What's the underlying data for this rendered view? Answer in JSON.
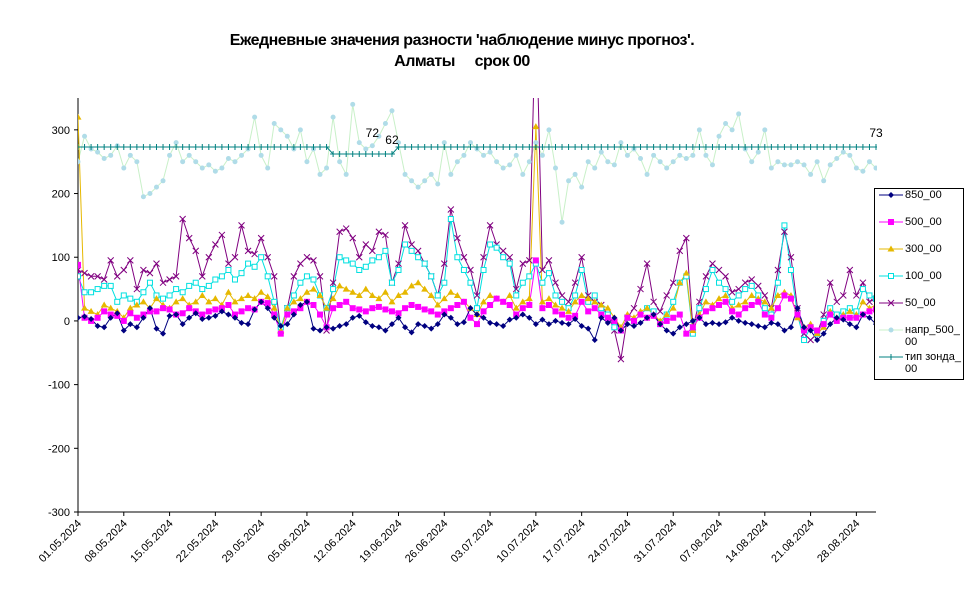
{
  "chart_data": {
    "type": "line",
    "title": "Ежедневные значения разности 'наблюдение минус прогноз'.",
    "subtitle": "Алматы     срок 00",
    "categories": [
      "01.05.2024",
      null,
      null,
      null,
      null,
      null,
      null,
      "08.05.2024",
      null,
      null,
      null,
      null,
      null,
      null,
      "15.05.2024",
      null,
      null,
      null,
      null,
      null,
      null,
      "22.05.2024",
      null,
      null,
      null,
      null,
      null,
      null,
      "29.05.2024",
      null,
      null,
      null,
      null,
      null,
      null,
      "05.06.2024",
      null,
      null,
      null,
      null,
      null,
      null,
      "12.06.2024",
      null,
      null,
      null,
      null,
      null,
      null,
      "19.06.2024",
      null,
      null,
      null,
      null,
      null,
      null,
      "26.06.2024",
      null,
      null,
      null,
      null,
      null,
      null,
      "03.07.2024",
      null,
      null,
      null,
      null,
      null,
      null,
      "10.07.2024",
      null,
      null,
      null,
      null,
      null,
      null,
      "17.07.2024",
      null,
      null,
      null,
      null,
      null,
      null,
      "24.07.2024",
      null,
      null,
      null,
      null,
      null,
      null,
      "31.07.2024",
      null,
      null,
      null,
      null,
      null,
      null,
      "07.08.2024",
      null,
      null,
      null,
      null,
      null,
      null,
      "14.08.2024",
      null,
      null,
      null,
      null,
      null,
      null,
      "21.08.2024",
      null,
      null,
      null,
      null,
      null,
      null,
      "28.08.2024",
      null,
      null,
      null
    ],
    "ylim": [
      -300,
      350
    ],
    "yticks": [
      -300,
      -200,
      -100,
      0,
      100,
      200,
      300
    ],
    "series": [
      {
        "name": "850_00",
        "color": "#000080",
        "marker": "diamond",
        "values": [
          5,
          7,
          3,
          -8,
          -10,
          5,
          12,
          -15,
          -5,
          -10,
          5,
          20,
          -12,
          -20,
          8,
          10,
          -5,
          5,
          12,
          3,
          5,
          8,
          15,
          10,
          5,
          -3,
          -5,
          18,
          30,
          20,
          5,
          -8,
          -5,
          10,
          25,
          30,
          -12,
          -15,
          -10,
          -12,
          -8,
          -5,
          5,
          8,
          -2,
          -8,
          -10,
          -15,
          -5,
          5,
          -10,
          -18,
          -5,
          -8,
          -12,
          -5,
          10,
          5,
          -5,
          -2,
          20,
          10,
          5,
          -3,
          -5,
          -8,
          2,
          5,
          10,
          5,
          -5,
          2,
          -5,
          0,
          -3,
          -5,
          3,
          -8,
          -12,
          -30,
          5,
          -3,
          5,
          -15,
          -5,
          -8,
          -3,
          5,
          10,
          -5,
          -15,
          -20,
          -10,
          -5,
          0,
          5,
          -5,
          -3,
          -5,
          -2,
          5,
          0,
          -3,
          -5,
          -8,
          -10,
          -3,
          -5,
          -15,
          -10,
          20,
          -10,
          -15,
          -30,
          -20,
          -5,
          5,
          2,
          -5,
          -10,
          10,
          5,
          -5
        ]
      },
      {
        "name": "500_00",
        "color": "#ff00ff",
        "marker": "square",
        "values": [
          88,
          5,
          0,
          5,
          15,
          10,
          8,
          0,
          12,
          5,
          10,
          15,
          15,
          20,
          18,
          10,
          12,
          20,
          15,
          10,
          15,
          18,
          20,
          25,
          10,
          15,
          20,
          18,
          30,
          28,
          10,
          -20,
          10,
          15,
          20,
          30,
          25,
          10,
          -10,
          20,
          25,
          30,
          20,
          18,
          15,
          20,
          22,
          18,
          15,
          12,
          20,
          25,
          22,
          18,
          15,
          10,
          15,
          20,
          25,
          30,
          5,
          -5,
          15,
          25,
          35,
          30,
          25,
          10,
          20,
          25,
          95,
          20,
          25,
          15,
          10,
          5,
          8,
          30,
          15,
          20,
          10,
          5,
          0,
          -15,
          5,
          0,
          10,
          5,
          8,
          -5,
          0,
          5,
          10,
          -20,
          -10,
          5,
          15,
          20,
          25,
          30,
          15,
          10,
          20,
          25,
          30,
          10,
          5,
          20,
          40,
          35,
          10,
          -15,
          -10,
          -15,
          -5,
          10,
          0,
          5,
          5,
          5,
          10,
          15,
          18
        ]
      },
      {
        "name": "300_00",
        "color": "#e6b800",
        "marker": "triangle",
        "values": [
          320,
          20,
          15,
          10,
          25,
          20,
          15,
          5,
          20,
          25,
          30,
          20,
          35,
          25,
          20,
          30,
          35,
          25,
          30,
          40,
          30,
          35,
          25,
          45,
          30,
          35,
          40,
          35,
          45,
          38,
          20,
          -15,
          20,
          30,
          35,
          45,
          50,
          40,
          20,
          35,
          55,
          50,
          45,
          40,
          50,
          40,
          35,
          45,
          30,
          40,
          45,
          55,
          60,
          50,
          40,
          25,
          35,
          45,
          40,
          30,
          20,
          10,
          30,
          40,
          35,
          30,
          40,
          20,
          30,
          35,
          305,
          30,
          35,
          25,
          20,
          15,
          30,
          40,
          35,
          30,
          25,
          20,
          5,
          -10,
          10,
          5,
          15,
          20,
          10,
          0,
          10,
          20,
          60,
          75,
          -15,
          10,
          30,
          25,
          35,
          40,
          20,
          25,
          30,
          40,
          35,
          30,
          20,
          40,
          45,
          40,
          5,
          -10,
          -5,
          -20,
          -10,
          15,
          5,
          10,
          15,
          10,
          30,
          20,
          25
        ]
      },
      {
        "name": "100_00",
        "color": "#00e0e0",
        "marker": "square-open",
        "values": [
          70,
          45,
          45,
          50,
          55,
          55,
          30,
          40,
          35,
          30,
          45,
          60,
          40,
          35,
          40,
          50,
          45,
          55,
          60,
          50,
          55,
          65,
          70,
          80,
          65,
          75,
          90,
          85,
          100,
          70,
          30,
          -10,
          20,
          40,
          60,
          70,
          65,
          40,
          20,
          50,
          100,
          95,
          90,
          80,
          85,
          95,
          100,
          110,
          60,
          80,
          120,
          110,
          100,
          90,
          70,
          40,
          60,
          160,
          100,
          80,
          60,
          20,
          80,
          120,
          115,
          100,
          90,
          40,
          60,
          70,
          90,
          60,
          75,
          40,
          30,
          20,
          40,
          80,
          30,
          40,
          20,
          10,
          -10,
          -15,
          5,
          0,
          10,
          20,
          15,
          -5,
          10,
          30,
          60,
          70,
          -20,
          20,
          50,
          80,
          60,
          50,
          30,
          40,
          50,
          55,
          40,
          20,
          10,
          60,
          150,
          80,
          10,
          -30,
          -10,
          -20,
          0,
          20,
          10,
          15,
          20,
          15,
          50,
          40,
          35
        ]
      },
      {
        "name": "50_00",
        "color": "#800080",
        "marker": "x",
        "values": [
          80,
          75,
          70,
          70,
          65,
          95,
          70,
          80,
          95,
          50,
          80,
          75,
          90,
          60,
          65,
          70,
          160,
          130,
          110,
          70,
          100,
          120,
          135,
          90,
          100,
          150,
          110,
          105,
          130,
          100,
          70,
          -15,
          20,
          70,
          90,
          100,
          95,
          70,
          -15,
          60,
          140,
          145,
          130,
          100,
          120,
          110,
          140,
          135,
          60,
          90,
          150,
          120,
          110,
          90,
          70,
          40,
          90,
          175,
          130,
          100,
          80,
          40,
          100,
          150,
          120,
          110,
          100,
          50,
          90,
          95,
          500,
          80,
          95,
          60,
          40,
          30,
          60,
          100,
          40,
          30,
          25,
          10,
          -15,
          -60,
          5,
          20,
          50,
          90,
          30,
          15,
          40,
          60,
          110,
          130,
          -10,
          30,
          70,
          90,
          80,
          70,
          45,
          50,
          60,
          65,
          55,
          40,
          20,
          80,
          140,
          100,
          20,
          -20,
          -30,
          -20,
          10,
          60,
          30,
          40,
          80,
          40,
          60,
          30,
          35
        ]
      },
      {
        "name": "напр_500_00",
        "color": "#b0dce8",
        "line_color": "#c8f0c8",
        "marker": "circle",
        "values": [
          250,
          290,
          270,
          265,
          255,
          260,
          275,
          240,
          260,
          250,
          195,
          200,
          210,
          220,
          260,
          280,
          250,
          260,
          250,
          240,
          245,
          235,
          240,
          255,
          250,
          260,
          270,
          320,
          260,
          240,
          310,
          300,
          290,
          270,
          300,
          250,
          270,
          230,
          240,
          320,
          250,
          230,
          340,
          280,
          270,
          275,
          290,
          310,
          330,
          280,
          230,
          220,
          210,
          220,
          230,
          215,
          280,
          230,
          250,
          260,
          280,
          270,
          260,
          265,
          250,
          240,
          245,
          260,
          230,
          250,
          280,
          260,
          300,
          240,
          155,
          220,
          230,
          210,
          250,
          240,
          265,
          250,
          245,
          280,
          260,
          270,
          255,
          230,
          260,
          250,
          240,
          250,
          260,
          255,
          260,
          300,
          260,
          245,
          290,
          310,
          300,
          325,
          270,
          250,
          265,
          300,
          240,
          250,
          245,
          245,
          250,
          245,
          230,
          250,
          220,
          245,
          255,
          265,
          260,
          240,
          235,
          250,
          240
        ]
      },
      {
        "name": "тип зонда_00",
        "color": "#008080",
        "marker": "plus",
        "values": [
          273,
          273,
          273,
          273,
          273,
          273,
          273,
          273,
          273,
          273,
          273,
          273,
          273,
          273,
          273,
          273,
          273,
          273,
          273,
          273,
          273,
          273,
          273,
          273,
          273,
          273,
          273,
          273,
          273,
          273,
          273,
          273,
          273,
          273,
          273,
          273,
          273,
          273,
          273,
          262,
          262,
          262,
          262,
          262,
          262,
          262,
          262,
          262,
          262,
          273,
          273,
          273,
          273,
          273,
          273,
          273,
          273,
          273,
          273,
          273,
          273,
          273,
          273,
          273,
          273,
          273,
          273,
          273,
          273,
          273,
          273,
          273,
          273,
          273,
          273,
          273,
          273,
          273,
          273,
          273,
          273,
          273,
          273,
          273,
          273,
          273,
          273,
          273,
          273,
          273,
          273,
          273,
          273,
          273,
          273,
          273,
          273,
          273,
          273,
          273,
          273,
          273,
          273,
          273,
          273,
          273,
          273,
          273,
          273,
          273,
          273,
          273,
          273,
          273,
          273,
          273,
          273,
          273,
          273,
          273,
          273,
          273,
          273
        ]
      }
    ],
    "annotations": [
      {
        "text": "72",
        "x": "15.06.2024",
        "y": 273
      },
      {
        "text": "62",
        "x": "18.06.2024",
        "y": 262
      },
      {
        "text": "73",
        "x": "31.08.2024",
        "y": 273
      }
    ]
  }
}
